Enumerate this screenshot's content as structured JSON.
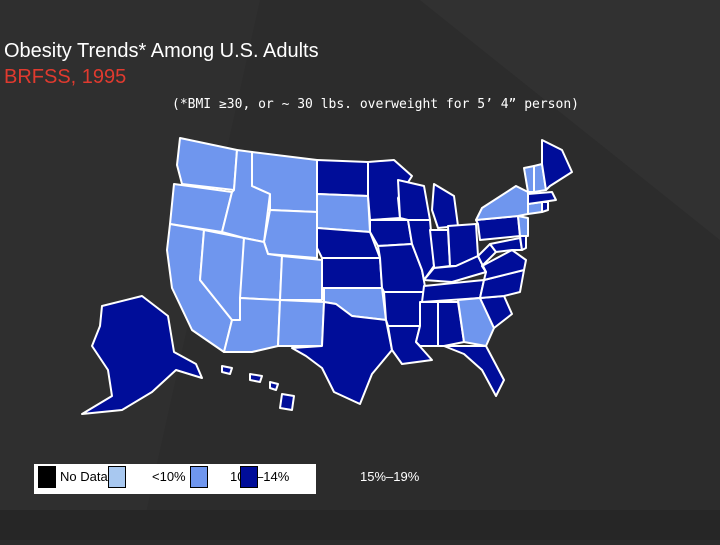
{
  "slide": {
    "title": "Obesity Trends* Among U.S. Adults",
    "subtitle": "BRFSS, 1995",
    "note": "(*BMI ≥30, or ~ 30 lbs. overweight for 5’ 4” person)"
  },
  "legend": {
    "items": [
      {
        "label": "No Data",
        "color": "#000000"
      },
      {
        "label": "<10%",
        "color": "#a8c8f0"
      },
      {
        "label": "10%–14%",
        "color": "#6f96ee"
      },
      {
        "label": "15%–19%",
        "color": "#000d99"
      }
    ]
  },
  "colors": {
    "background": "#2c2c2c",
    "title": "#ffffff",
    "subtitle": "#e03a2f",
    "light": "#6f96ee",
    "dark": "#000d99",
    "border": "#ffffff"
  },
  "map_data": {
    "category_light": "10%–14%",
    "category_dark": "15%–19%",
    "states_10_14": [
      "WA",
      "OR",
      "CA",
      "NV",
      "ID",
      "MT",
      "WY",
      "UT",
      "CO",
      "AZ",
      "NM",
      "SD",
      "OK",
      "GA",
      "NY",
      "VT",
      "NH",
      "CT",
      "NJ"
    ],
    "states_15_19": [
      "ND",
      "MN",
      "WI",
      "MI",
      "IA",
      "NE",
      "KS",
      "MO",
      "IL",
      "IN",
      "OH",
      "KY",
      "TN",
      "AR",
      "LA",
      "MS",
      "AL",
      "TX",
      "FL",
      "SC",
      "NC",
      "VA",
      "WV",
      "PA",
      "MD",
      "DE",
      "ME",
      "MA",
      "RI",
      "AK",
      "HI"
    ]
  }
}
